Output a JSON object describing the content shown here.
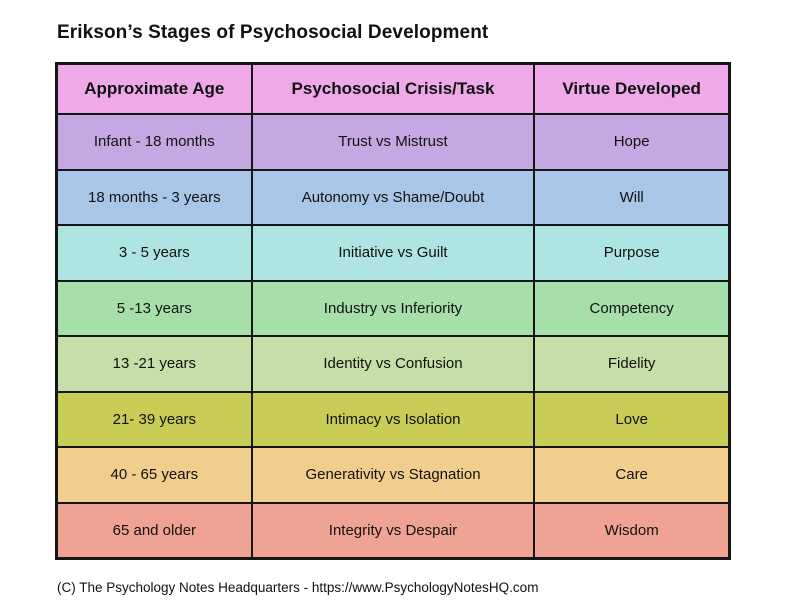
{
  "page": {
    "title": "Erikson’s Stages of Psychosocial Development",
    "footer": "(C) The Psychology Notes Headquarters - https://www.PsychologyNotesHQ.com"
  },
  "table": {
    "header_bg": "#efa9e8",
    "border_color": "#161616",
    "text_color": "#111111",
    "columns": [
      "Approximate Age",
      "Psychosocial Crisis/Task",
      "Virtue Developed"
    ],
    "rows": [
      {
        "age": "Infant - 18 months",
        "crisis": "Trust vs Mistrust",
        "virtue": "Hope",
        "bg": "#c3a8e2"
      },
      {
        "age": "18 months - 3 years",
        "crisis": "Autonomy vs Shame/Doubt",
        "virtue": "Will",
        "bg": "#a9c6e8"
      },
      {
        "age": "3 - 5 years",
        "crisis": "Initiative vs Guilt",
        "virtue": "Purpose",
        "bg": "#aee4e1"
      },
      {
        "age": "5 -13 years",
        "crisis": "Industry vs Inferiority",
        "virtue": "Competency",
        "bg": "#a7dfab"
      },
      {
        "age": "13 -21 years",
        "crisis": "Identity vs Confusion",
        "virtue": "Fidelity",
        "bg": "#c5dfa9"
      },
      {
        "age": "21- 39 years",
        "crisis": "Intimacy vs Isolation",
        "virtue": "Love",
        "bg": "#c9cc55"
      },
      {
        "age": "40 - 65 years",
        "crisis": "Generativity vs Stagnation",
        "virtue": "Care",
        "bg": "#f2ce8e"
      },
      {
        "age": "65 and older",
        "crisis": "Integrity vs Despair",
        "virtue": "Wisdom",
        "bg": "#f0a294"
      }
    ]
  },
  "chart_data": {
    "type": "table",
    "title": "Erikson’s Stages of Psychosocial Development",
    "columns": [
      "Approximate Age",
      "Psychosocial Crisis/Task",
      "Virtue Developed"
    ],
    "rows": [
      [
        "Infant - 18 months",
        "Trust vs Mistrust",
        "Hope"
      ],
      [
        "18 months - 3 years",
        "Autonomy vs Shame/Doubt",
        "Will"
      ],
      [
        "3 - 5 years",
        "Initiative vs Guilt",
        "Purpose"
      ],
      [
        "5 -13 years",
        "Industry vs Inferiority",
        "Competency"
      ],
      [
        "13 -21 years",
        "Identity vs Confusion",
        "Fidelity"
      ],
      [
        "21- 39 years",
        "Intimacy vs Isolation",
        "Love"
      ],
      [
        "40 - 65 years",
        "Generativity vs Stagnation",
        "Care"
      ],
      [
        "65 and older",
        "Integrity vs Despair",
        "Wisdom"
      ]
    ],
    "row_colors": [
      "#c3a8e2",
      "#a9c6e8",
      "#aee4e1",
      "#a7dfab",
      "#c5dfa9",
      "#c9cc55",
      "#f2ce8e",
      "#f0a294"
    ],
    "header_color": "#efa9e8",
    "footer": "(C) The Psychology Notes Headquarters - https://www.PsychologyNotesHQ.com"
  }
}
